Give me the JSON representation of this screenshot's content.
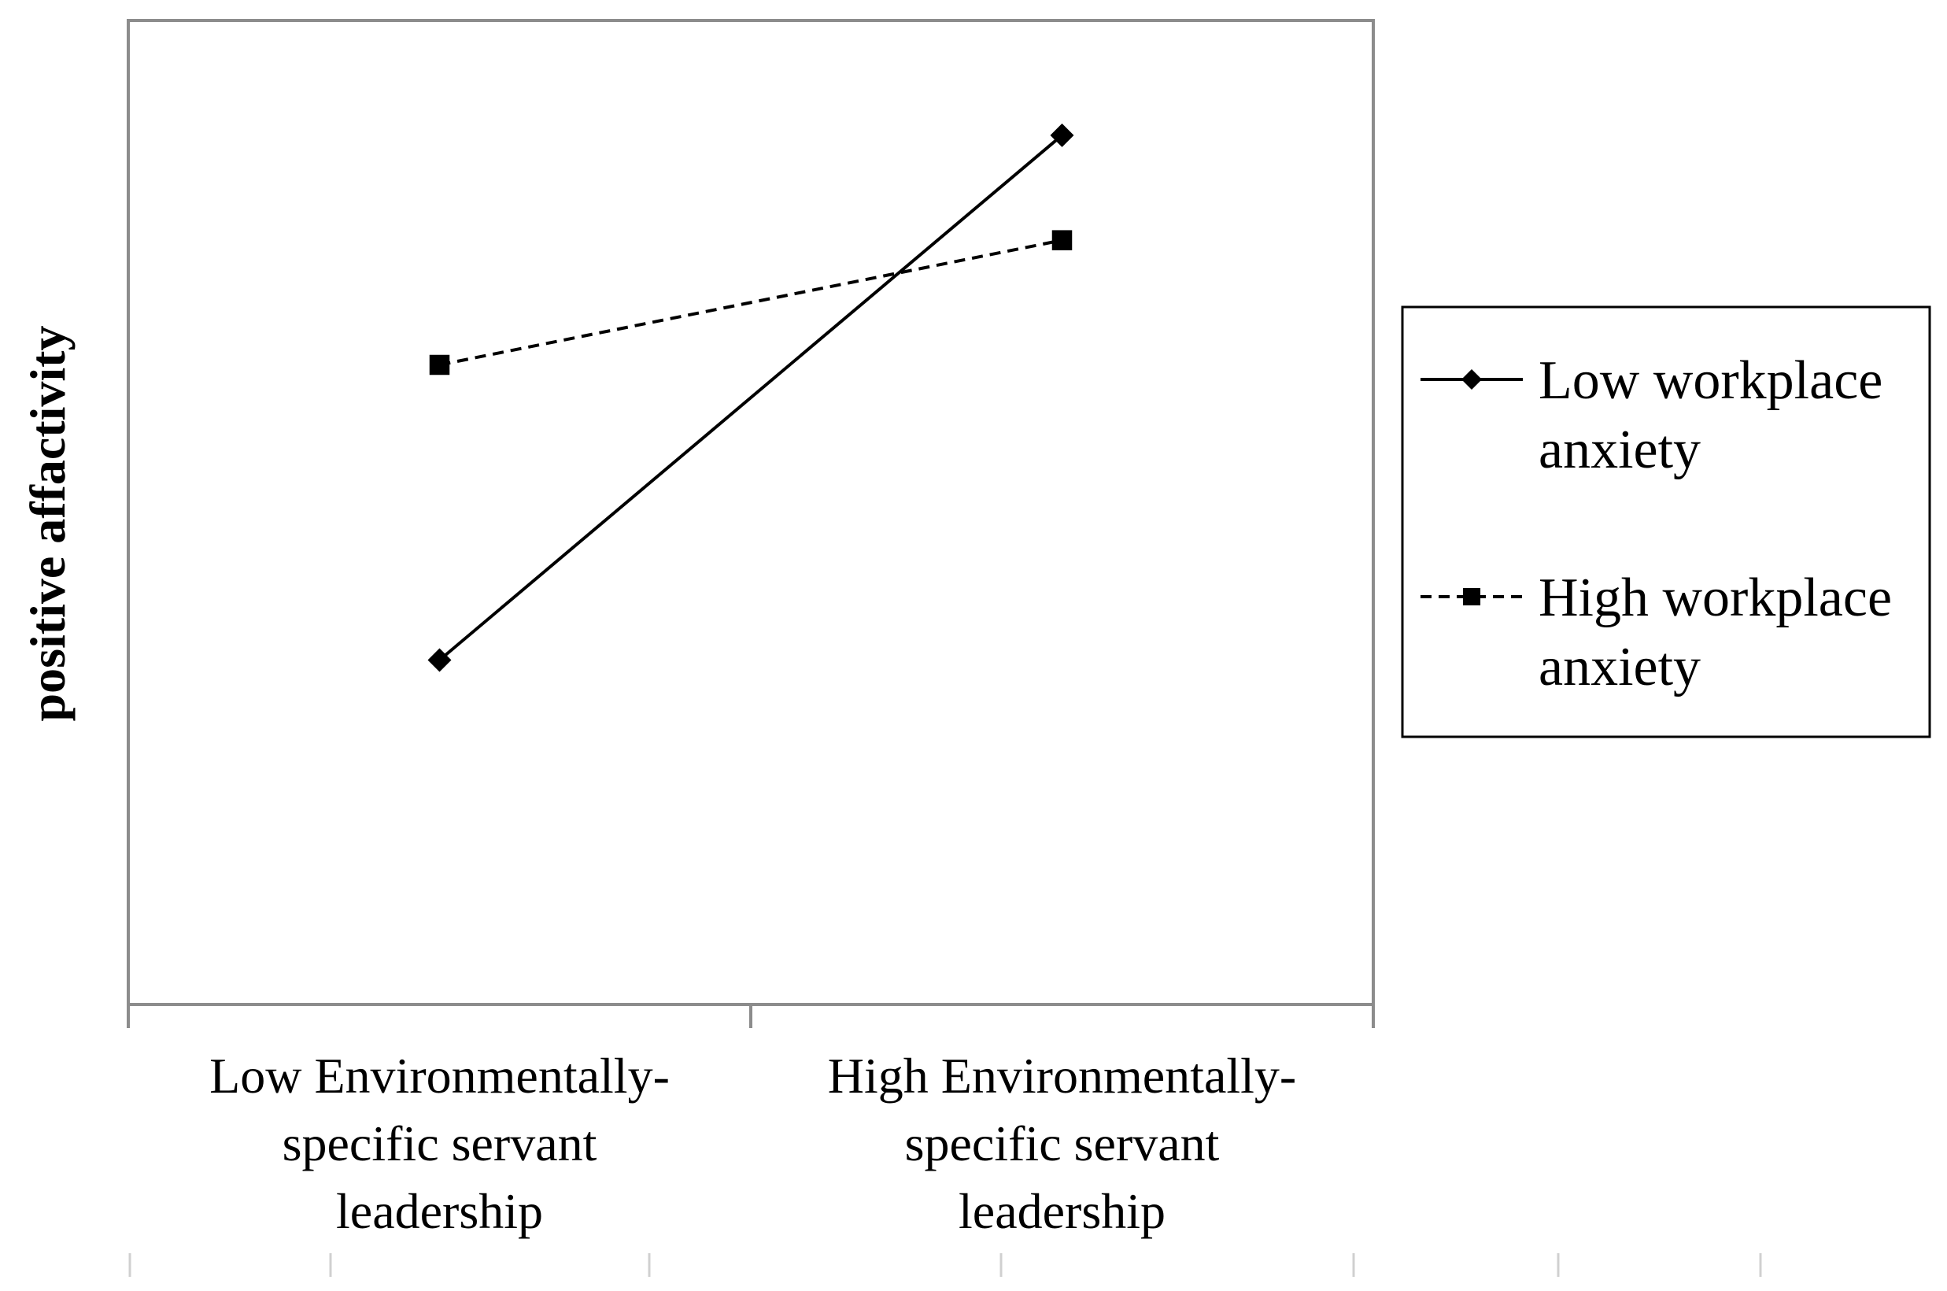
{
  "chart_data": {
    "type": "line",
    "title": "",
    "xlabel": "",
    "ylabel": "positive affactivity",
    "categories": [
      [
        "Low Environmentally-",
        "specific servant",
        "leadership"
      ],
      [
        "High Environmentally-",
        "specific servant",
        "leadership"
      ]
    ],
    "series": [
      {
        "name": [
          "Low workplace",
          "anxiety"
        ],
        "values": [
          2.1,
          5.3
        ],
        "line_style": "solid",
        "marker": "diamond",
        "color": "#000000"
      },
      {
        "name": [
          "High workplace",
          "anxiety"
        ],
        "values": [
          3.9,
          4.66
        ],
        "line_style": "dashed",
        "marker": "square",
        "color": "#000000"
      }
    ],
    "ylim": [
      0,
      6
    ],
    "grid": false,
    "legend_position": "right"
  }
}
